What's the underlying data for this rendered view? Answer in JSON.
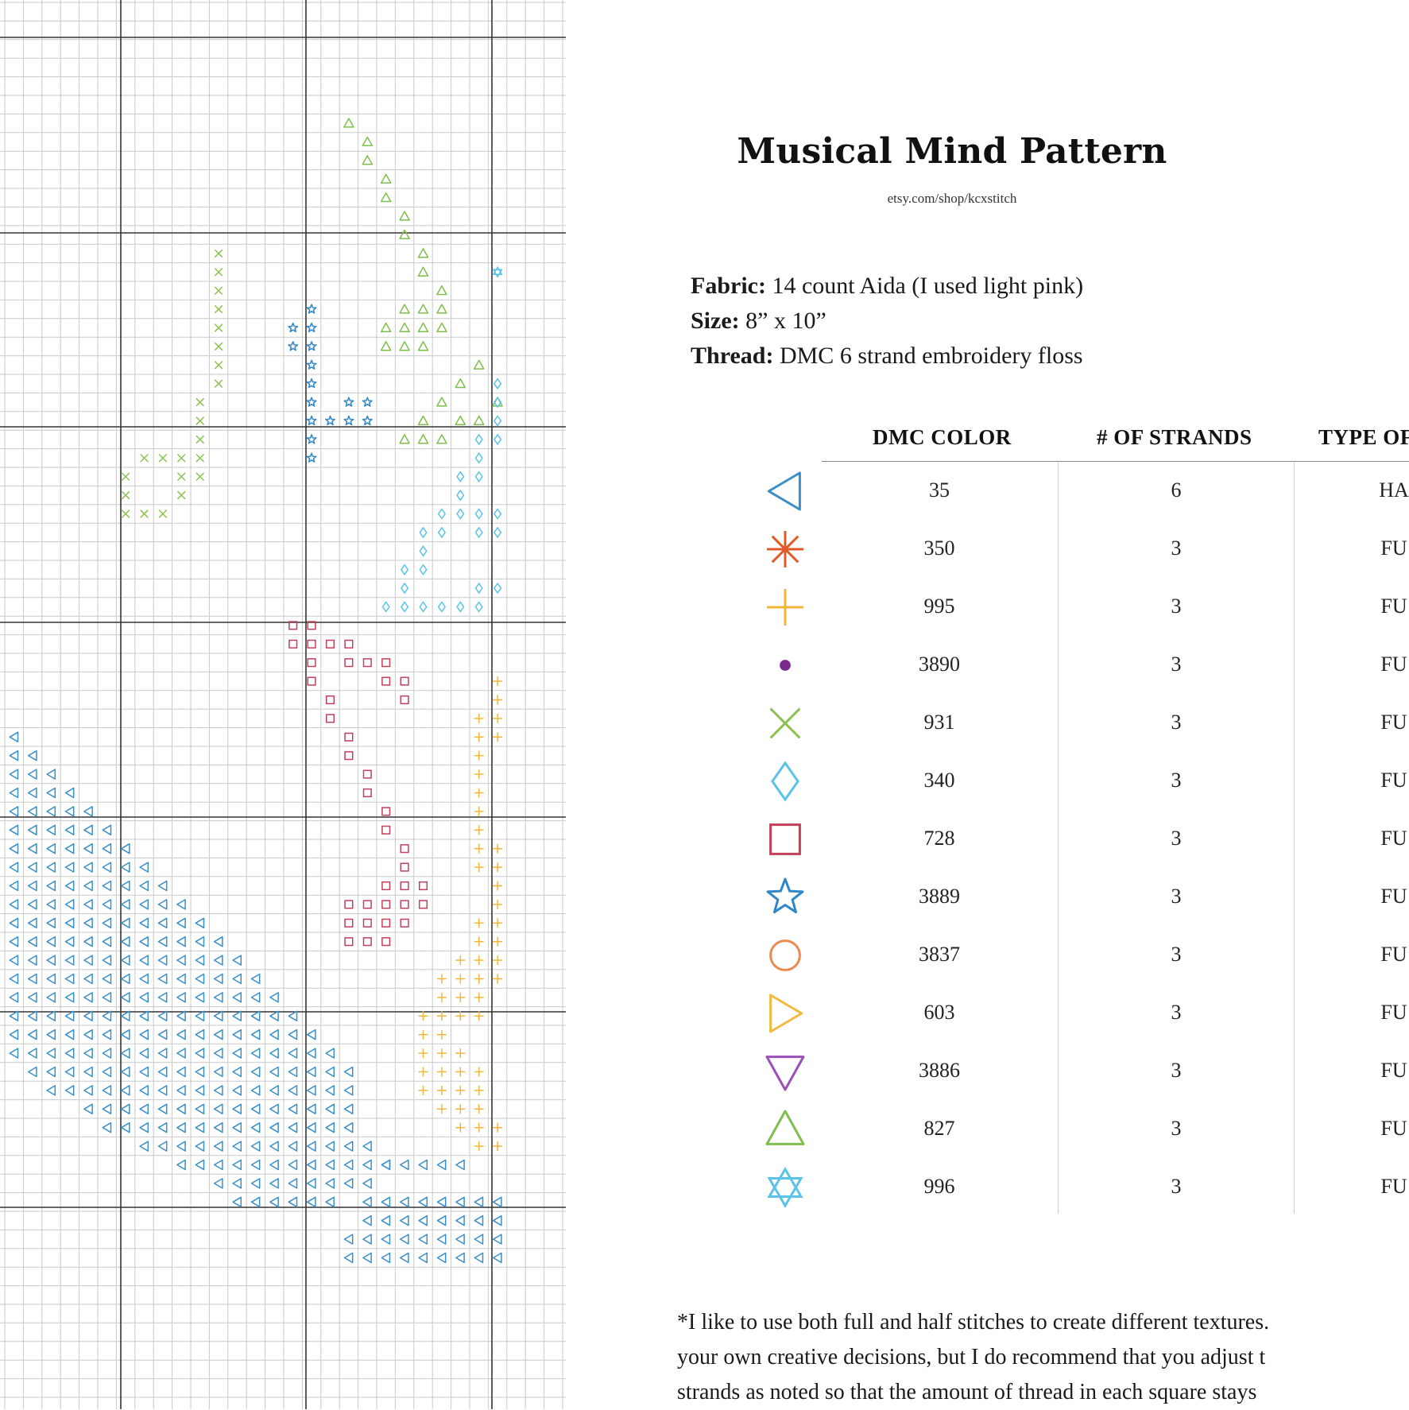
{
  "pattern": {
    "title": "Musical Mind Pattern",
    "url": "etsy.com/shop/kcxstitch",
    "fabric_label": "Fabric:",
    "fabric_value": "14 count Aida (I used light pink)",
    "size_label": "Size:",
    "size_value": "8” x 10”",
    "thread_label": "Thread:",
    "thread_value": "DMC 6 strand embroidery floss"
  },
  "key": {
    "headers": [
      "DMC COLOR",
      "# OF STRANDS",
      "TYPE OF"
    ],
    "rows": [
      {
        "symbol": "left-triangle",
        "color_hex": "#3a8fc9",
        "dmc": "35",
        "strands": "6",
        "type": "HA"
      },
      {
        "symbol": "asterisk",
        "color_hex": "#e0592a",
        "dmc": "350",
        "strands": "3",
        "type": "FU"
      },
      {
        "symbol": "plus",
        "color_hex": "#f2b73a",
        "dmc": "995",
        "strands": "3",
        "type": "FU"
      },
      {
        "symbol": "dot",
        "color_hex": "#7b2a8f",
        "dmc": "3890",
        "strands": "3",
        "type": "FU"
      },
      {
        "symbol": "x-mark",
        "color_hex": "#8cc152",
        "dmc": "931",
        "strands": "3",
        "type": "FU"
      },
      {
        "symbol": "diamond",
        "color_hex": "#5bc3e8",
        "dmc": "340",
        "strands": "3",
        "type": "FU"
      },
      {
        "symbol": "square",
        "color_hex": "#c2405a",
        "dmc": "728",
        "strands": "3",
        "type": "FU"
      },
      {
        "symbol": "star",
        "color_hex": "#2f86c8",
        "dmc": "3889",
        "strands": "3",
        "type": "FU"
      },
      {
        "symbol": "circle",
        "color_hex": "#ec8a52",
        "dmc": "3837",
        "strands": "3",
        "type": "FU"
      },
      {
        "symbol": "right-triangle",
        "color_hex": "#f4b93e",
        "dmc": "603",
        "strands": "3",
        "type": "FU"
      },
      {
        "symbol": "down-triangle",
        "color_hex": "#9a50b8",
        "dmc": "3886",
        "strands": "3",
        "type": "FU"
      },
      {
        "symbol": "up-triangle",
        "color_hex": "#7fbf4d",
        "dmc": "827",
        "strands": "3",
        "type": "FU"
      },
      {
        "symbol": "six-point-star",
        "color_hex": "#5bc3e8",
        "dmc": "996",
        "strands": "3",
        "type": "FU"
      }
    ]
  },
  "note_lines": [
    "*I like to use both full and half stitches to create different textures.",
    "your own creative decisions, but I do recommend that you adjust t",
    "strands as noted so that the amount of thread in each square stays"
  ]
}
